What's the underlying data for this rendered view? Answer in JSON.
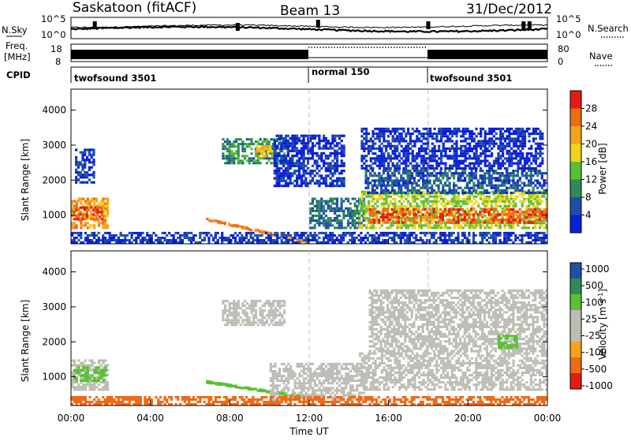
{
  "header": {
    "station": "Saskatoon (fitACF)",
    "beam": "Beam 13",
    "date": "31/Dec/2012"
  },
  "top_panel": {
    "left_label": "N.Sky",
    "left_ticks": [
      "10^5",
      "10^0"
    ],
    "right_ticks": [
      "10^5",
      "10^0"
    ],
    "right_label": "N.Search"
  },
  "freq_panel": {
    "label_line1": "Freq.",
    "label_line2": "[MHz]",
    "left_ticks": [
      "18",
      "8"
    ],
    "right_ticks": [
      "80",
      "0"
    ],
    "right_label": "Nave"
  },
  "cpid_panel": {
    "label": "CPID",
    "segments": [
      "twofsound 3501",
      "normal 150",
      "twofsound 3501"
    ]
  },
  "colors": {
    "power_scale": [
      "#0a1fd8",
      "#1e4fa8",
      "#2f8a55",
      "#59c132",
      "#f0d21e",
      "#f5a31c",
      "#f06a16",
      "#e51b14"
    ],
    "velocity_scale": [
      "#e51b14",
      "#f06a16",
      "#f5a31c",
      "#bdbdb5",
      "#bdbdb5",
      "#59c132",
      "#2f8a55",
      "#1e4fa8"
    ]
  },
  "chart_data": [
    {
      "type": "heatmap",
      "name": "power",
      "ylabel": "Slant Range [km]",
      "yticks": [
        "1000",
        "2000",
        "3000",
        "4000"
      ],
      "ylim": [
        180,
        4600
      ],
      "xlim_hours": [
        0,
        24
      ],
      "colorbar_label": "Power [dB]",
      "colorbar_ticks": [
        "4",
        "8",
        "12",
        "16",
        "20",
        "24",
        "28"
      ],
      "regions": [
        {
          "t": [
            0.0,
            1.9
          ],
          "r": [
            600,
            1500
          ],
          "v": 24
        },
        {
          "t": [
            0.1,
            1.6
          ],
          "r": [
            850,
            1250
          ],
          "v": 29
        },
        {
          "t": [
            0.2,
            1.2
          ],
          "r": [
            1900,
            2900
          ],
          "v": 6
        },
        {
          "t": [
            7.6,
            10.8
          ],
          "r": [
            2450,
            3200
          ],
          "v": 12
        },
        {
          "t": [
            9.3,
            10.2
          ],
          "r": [
            2650,
            3000
          ],
          "v": 22
        },
        {
          "t": [
            6.8,
            11.9
          ],
          "r": [
            250,
            900
          ],
          "v": 26,
          "shape": "diag"
        },
        {
          "t": [
            10.2,
            13.8
          ],
          "r": [
            1800,
            3300
          ],
          "v": 5
        },
        {
          "t": [
            12.0,
            14.8
          ],
          "r": [
            600,
            1500
          ],
          "v": 10
        },
        {
          "t": [
            14.5,
            24.0
          ],
          "r": [
            600,
            1700
          ],
          "v": 18
        },
        {
          "t": [
            15.0,
            24.0
          ],
          "r": [
            750,
            1200
          ],
          "v": 29
        },
        {
          "t": [
            14.8,
            24.0
          ],
          "r": [
            1600,
            2300
          ],
          "v": 8
        },
        {
          "t": [
            14.6,
            23.8
          ],
          "r": [
            2300,
            3500
          ],
          "v": 4
        },
        {
          "t": [
            0.0,
            24.0
          ],
          "r": [
            180,
            520
          ],
          "v": 6
        }
      ]
    },
    {
      "type": "heatmap",
      "name": "velocity",
      "ylabel": "Slant Range [km]",
      "yticks": [
        "1000",
        "2000",
        "3000",
        "4000"
      ],
      "ylim": [
        180,
        4600
      ],
      "xlim_hours": [
        0,
        24
      ],
      "xticks": [
        "00:00",
        "04:00",
        "08:00",
        "12:00",
        "16:00",
        "20:00",
        "00:00"
      ],
      "xlabel": "Time UT",
      "colorbar_label": "Velocity [m s^-1]",
      "colorbar_ticks": [
        "1000",
        "500",
        "100",
        "25",
        "-25",
        "-100",
        "-500",
        "-1000"
      ],
      "regions": [
        {
          "t": [
            0.0,
            1.9
          ],
          "r": [
            600,
            1500
          ],
          "v": 0
        },
        {
          "t": [
            0.1,
            1.8
          ],
          "r": [
            850,
            1300
          ],
          "v": 150
        },
        {
          "t": [
            7.6,
            10.8
          ],
          "r": [
            2450,
            3200
          ],
          "v": 0
        },
        {
          "t": [
            6.8,
            11.9
          ],
          "r": [
            400,
            850
          ],
          "v": 120,
          "shape": "diag"
        },
        {
          "t": [
            10.0,
            14.8
          ],
          "r": [
            300,
            1400
          ],
          "v": 0
        },
        {
          "t": [
            14.5,
            24.0
          ],
          "r": [
            600,
            1700
          ],
          "v": 0
        },
        {
          "t": [
            15.0,
            24.0
          ],
          "r": [
            1700,
            3500
          ],
          "v": 0
        },
        {
          "t": [
            0.0,
            24.0
          ],
          "r": [
            180,
            450
          ],
          "v": -150
        },
        {
          "t": [
            21.5,
            22.5
          ],
          "r": [
            1800,
            2200
          ],
          "v": 400
        }
      ]
    }
  ]
}
